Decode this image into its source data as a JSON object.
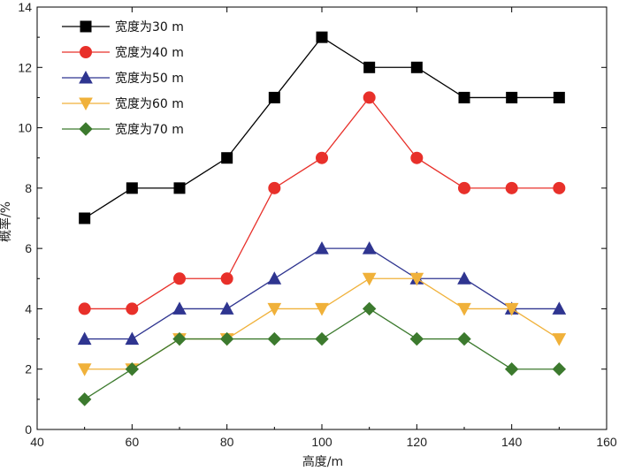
{
  "chart_data": {
    "type": "line",
    "xlabel": "高度/m",
    "ylabel": "概率/%",
    "xlim": [
      40,
      160
    ],
    "ylim": [
      0,
      14
    ],
    "x_ticks": [
      40,
      60,
      80,
      100,
      120,
      140,
      160
    ],
    "y_ticks": [
      0,
      2,
      4,
      6,
      8,
      10,
      12,
      14
    ],
    "x": [
      50,
      60,
      70,
      80,
      90,
      100,
      110,
      120,
      130,
      140,
      150
    ],
    "grid": false,
    "legend_position": "top-left",
    "series": [
      {
        "name": "宽度为30 m",
        "color": "#000000",
        "marker": "square",
        "values": [
          7,
          8,
          8,
          9,
          11,
          13,
          12,
          12,
          11,
          11,
          11
        ]
      },
      {
        "name": "宽度为40 m",
        "color": "#e8302a",
        "marker": "circle",
        "values": [
          4,
          4,
          5,
          5,
          8,
          9,
          11,
          9,
          8,
          8,
          8
        ]
      },
      {
        "name": "宽度为50 m",
        "color": "#2f3590",
        "marker": "triangle-up",
        "values": [
          3,
          3,
          4,
          4,
          5,
          6,
          6,
          5,
          5,
          4,
          4
        ]
      },
      {
        "name": "宽度为60 m",
        "color": "#f0b13a",
        "marker": "triangle-down",
        "values": [
          2,
          2,
          3,
          3,
          4,
          4,
          5,
          5,
          4,
          4,
          3
        ]
      },
      {
        "name": "宽度为70 m",
        "color": "#3c7a2e",
        "marker": "diamond",
        "values": [
          1,
          2,
          3,
          3,
          3,
          3,
          4,
          3,
          3,
          2,
          2
        ]
      }
    ]
  }
}
